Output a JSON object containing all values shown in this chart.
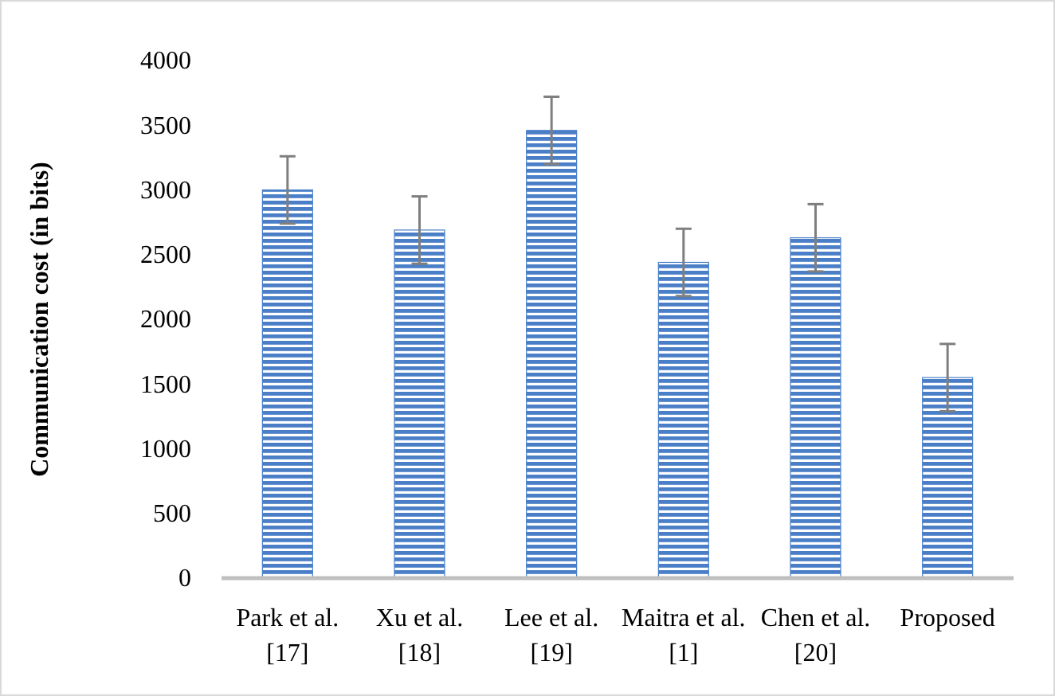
{
  "chart_data": {
    "type": "bar",
    "ylabel": "Communication cost (in bits)",
    "categories": [
      "Park et al. [17]",
      "Xu et al. [18]",
      "Lee et al. [19]",
      "Maitra et al. [1]",
      "Chen et al. [20]",
      "Proposed"
    ],
    "values": [
      3000,
      2690,
      3460,
      2440,
      2630,
      1550
    ],
    "errors": [
      260,
      260,
      260,
      260,
      260,
      260
    ],
    "color": "#4a7fc8",
    "ylim": [
      0,
      4000
    ],
    "yticks": [
      0,
      500,
      1000,
      1500,
      2000,
      2500,
      3000,
      3500,
      4000
    ],
    "grid": false
  }
}
